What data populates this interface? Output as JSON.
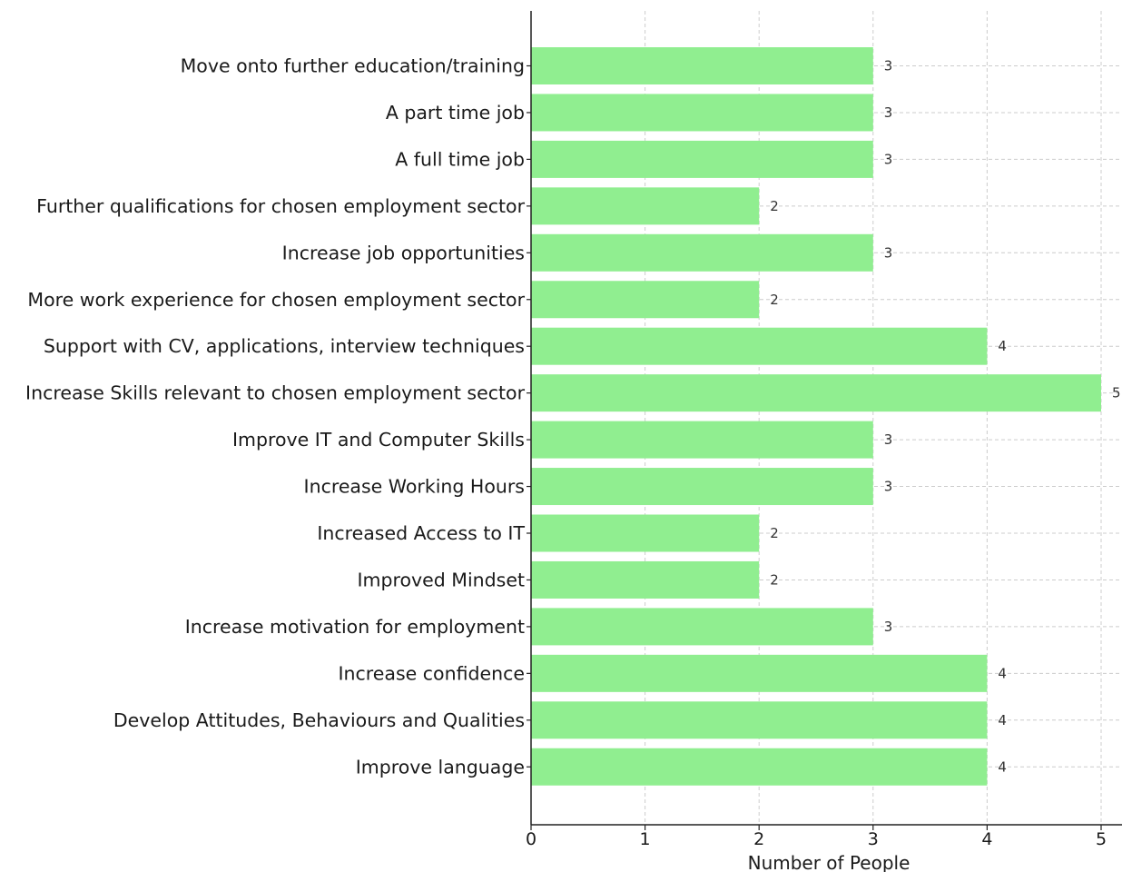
{
  "chart_data": {
    "type": "bar",
    "orientation": "horizontal",
    "title": "",
    "xlabel": "Number of People",
    "ylabel": "",
    "xlim": [
      0,
      5.2
    ],
    "xticks": [
      0,
      1,
      2,
      3,
      4,
      5
    ],
    "grid": true,
    "bar_color": "#90ee90",
    "categories": [
      "Move onto further education/training",
      "A part time job",
      "A full time job",
      "Further qualifications for chosen employment sector",
      "Increase job opportunities",
      "More work experience for chosen employment sector",
      "Support with CV, applications, interview techniques",
      "Increase Skills relevant to chosen employment sector",
      "Improve IT and Computer Skills",
      "Increase Working Hours",
      "Increased Access to IT",
      "Improved Mindset",
      "Increase motivation for employment",
      "Increase confidence",
      "Develop Attitudes, Behaviours and Qualities",
      "Improve language"
    ],
    "values": [
      3,
      3,
      3,
      2,
      3,
      2,
      4,
      5,
      3,
      3,
      2,
      2,
      3,
      4,
      4,
      4
    ]
  }
}
